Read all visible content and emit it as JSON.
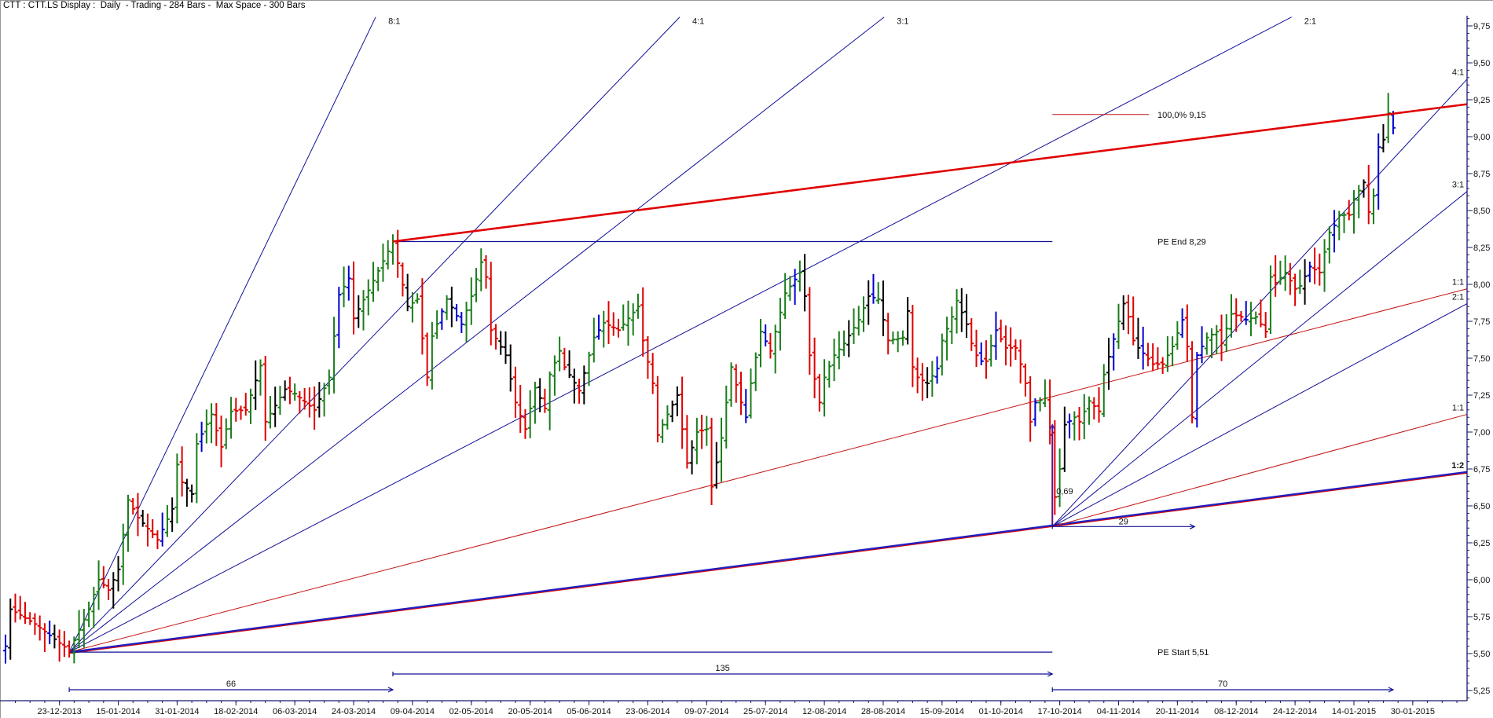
{
  "header": {
    "title": "CTT : CTT.LS Display :  Daily  - Trading - 284 Bars -  Max Space - 300 Bars"
  },
  "colors": {
    "up": "#1a7d1a",
    "down": "#e00000",
    "neutral": "#000000",
    "inside": "#0000d0",
    "fan": "#101098",
    "fan_red": "#c41414",
    "axis": "#1a1a6e"
  },
  "chart_data": {
    "type": "ohlc-bar",
    "title": "CTT : CTT.LS Display :  Daily  - Trading - 284 Bars -  Max Space - 300 Bars",
    "bar_count": 284,
    "xlim_bars": [
      -0.3,
      298.5
    ],
    "ylim": [
      5.18,
      9.85
    ],
    "y_ticks": [
      "5,25",
      "5,50",
      "5,75",
      "6,00",
      "6,25",
      "6,50",
      "6,75",
      "7,00",
      "7,25",
      "7,50",
      "7,75",
      "8,00",
      "8,25",
      "8,50",
      "8,75",
      "9,00",
      "9,25",
      "9,50",
      "9,75"
    ],
    "x_tick_first_bar": 11,
    "x_tick_step_bars": 12,
    "x_ticks": [
      "23-12-2013",
      "15-01-2014",
      "31-01-2014",
      "18-02-2014",
      "06-03-2014",
      "24-03-2014",
      "09-04-2014",
      "02-05-2014",
      "20-05-2014",
      "05-06-2014",
      "23-06-2014",
      "09-07-2014",
      "25-07-2014",
      "12-08-2014",
      "28-08-2014",
      "15-09-2014",
      "01-10-2014",
      "17-10-2014",
      "04-11-2014",
      "20-11-2014",
      "08-12-2014",
      "24-12-2014",
      "14-01-2015",
      "30-01-2015"
    ],
    "close_path": [
      [
        0,
        5.55
      ],
      [
        1,
        5.8
      ],
      [
        6,
        5.7
      ],
      [
        13,
        5.52
      ],
      [
        17,
        5.8
      ],
      [
        19,
        6.0
      ],
      [
        21,
        5.93
      ],
      [
        23,
        6.07
      ],
      [
        25,
        6.54
      ],
      [
        27,
        6.42
      ],
      [
        31,
        6.27
      ],
      [
        34,
        6.48
      ],
      [
        35,
        6.78
      ],
      [
        36,
        6.66
      ],
      [
        38,
        6.58
      ],
      [
        39,
        6.92
      ],
      [
        42,
        7.12
      ],
      [
        44,
        6.9
      ],
      [
        46,
        7.14
      ],
      [
        49,
        7.15
      ],
      [
        52,
        7.45
      ],
      [
        53,
        7.07
      ],
      [
        57,
        7.29
      ],
      [
        59,
        7.26
      ],
      [
        63,
        7.15
      ],
      [
        66,
        7.37
      ],
      [
        68,
        7.93
      ],
      [
        70,
        8.04
      ],
      [
        71,
        7.77
      ],
      [
        74,
        7.96
      ],
      [
        79,
        8.29
      ],
      [
        82,
        7.85
      ],
      [
        84,
        7.9
      ],
      [
        86,
        7.37
      ],
      [
        87,
        7.65
      ],
      [
        90,
        7.9
      ],
      [
        93,
        7.73
      ],
      [
        95,
        7.92
      ],
      [
        97,
        8.15
      ],
      [
        98,
        8.05
      ],
      [
        99,
        7.69
      ],
      [
        102,
        7.52
      ],
      [
        104,
        7.2
      ],
      [
        106,
        7.02
      ],
      [
        108,
        7.3
      ],
      [
        110,
        7.16
      ],
      [
        111,
        7.39
      ],
      [
        113,
        7.55
      ],
      [
        114,
        7.44
      ],
      [
        117,
        7.28
      ],
      [
        120,
        7.64
      ],
      [
        122,
        7.74
      ],
      [
        125,
        7.69
      ],
      [
        129,
        7.85
      ],
      [
        130,
        7.62
      ],
      [
        132,
        7.33
      ],
      [
        133,
        6.98
      ],
      [
        135,
        7.12
      ],
      [
        137,
        7.25
      ],
      [
        139,
        6.79
      ],
      [
        141,
        7.0
      ],
      [
        143,
        7.02
      ],
      [
        144,
        6.63
      ],
      [
        146,
        6.96
      ],
      [
        148,
        7.44
      ],
      [
        150,
        7.2
      ],
      [
        151,
        7.1
      ],
      [
        152,
        7.33
      ],
      [
        154,
        7.68
      ],
      [
        156,
        7.55
      ],
      [
        159,
        7.94
      ],
      [
        162,
        8.08
      ],
      [
        163,
        7.92
      ],
      [
        164,
        7.52
      ],
      [
        166,
        7.2
      ],
      [
        167,
        7.37
      ],
      [
        169,
        7.52
      ],
      [
        171,
        7.6
      ],
      [
        174,
        7.76
      ],
      [
        176,
        7.92
      ],
      [
        178,
        7.9
      ],
      [
        180,
        7.62
      ],
      [
        183,
        7.64
      ],
      [
        184,
        7.82
      ],
      [
        185,
        7.44
      ],
      [
        186,
        7.37
      ],
      [
        188,
        7.33
      ],
      [
        190,
        7.43
      ],
      [
        191,
        7.62
      ],
      [
        193,
        7.78
      ],
      [
        194,
        7.89
      ],
      [
        196,
        7.73
      ],
      [
        197,
        7.6
      ],
      [
        198,
        7.52
      ],
      [
        199,
        7.48
      ],
      [
        200,
        7.48
      ],
      [
        202,
        7.69
      ],
      [
        204,
        7.57
      ],
      [
        206,
        7.57
      ],
      [
        207,
        7.46
      ],
      [
        208,
        7.33
      ],
      [
        209,
        7.07
      ],
      [
        210,
        7.2
      ],
      [
        212,
        7.23
      ],
      [
        213,
        6.98
      ],
      [
        214,
        6.56
      ],
      [
        215,
        6.75
      ],
      [
        216,
        7.05
      ],
      [
        218,
        7.1
      ],
      [
        219,
        7.07
      ],
      [
        221,
        7.21
      ],
      [
        223,
        7.14
      ],
      [
        224,
        7.39
      ],
      [
        228,
        7.87
      ],
      [
        229,
        7.78
      ],
      [
        230,
        7.62
      ],
      [
        231,
        7.57
      ],
      [
        234,
        7.46
      ],
      [
        236,
        7.46
      ],
      [
        238,
        7.58
      ],
      [
        240,
        7.76
      ],
      [
        241,
        7.58
      ],
      [
        242,
        7.1
      ],
      [
        243,
        7.52
      ],
      [
        245,
        7.64
      ],
      [
        247,
        7.68
      ],
      [
        248,
        7.6
      ],
      [
        250,
        7.8
      ],
      [
        252,
        7.78
      ],
      [
        253,
        7.76
      ],
      [
        255,
        7.78
      ],
      [
        257,
        7.68
      ],
      [
        258,
        8.05
      ],
      [
        259,
        8.01
      ],
      [
        261,
        8.08
      ],
      [
        263,
        7.97
      ],
      [
        264,
        7.99
      ],
      [
        266,
        8.12
      ],
      [
        268,
        8.08
      ],
      [
        269,
        8.22
      ],
      [
        270,
        8.35
      ],
      [
        271,
        8.4
      ],
      [
        272,
        8.47
      ],
      [
        274,
        8.47
      ],
      [
        275,
        8.58
      ],
      [
        277,
        8.69
      ],
      [
        278,
        8.49
      ],
      [
        279,
        8.6
      ],
      [
        280,
        8.93
      ],
      [
        281,
        8.98
      ],
      [
        282,
        9.16
      ],
      [
        283,
        9.06
      ]
    ],
    "gann_fans": [
      {
        "name": "fan-1",
        "origin": [
          13,
          5.51
        ],
        "lines": [
          {
            "ratio": "8:1",
            "end": [
              75.5,
              9.81
            ],
            "style": "blue",
            "label_pos": "top"
          },
          {
            "ratio": "4:1",
            "end": [
              137.5,
              9.81
            ],
            "style": "blue",
            "label_pos": "top"
          },
          {
            "ratio": "3:1",
            "end": [
              179.2,
              9.81
            ],
            "style": "blue",
            "label_pos": "top"
          },
          {
            "ratio": "2:1",
            "end": [
              262.3,
              9.81
            ],
            "style": "blue",
            "label_pos": "top"
          },
          {
            "ratio": "1:1",
            "end": [
              298.1,
              7.97
            ],
            "style": "red",
            "label_pos": "right"
          },
          {
            "ratio": "1:2",
            "end": [
              298.1,
              6.73
            ],
            "style": "thick",
            "label_pos": "right"
          }
        ]
      },
      {
        "name": "fan-2",
        "origin": [
          213.5,
          6.36
        ],
        "lines": [
          {
            "ratio": "4:1",
            "end": [
              298.1,
              9.39
            ],
            "style": "blue",
            "label_pos": "right"
          },
          {
            "ratio": "3:1",
            "end": [
              298.1,
              8.63
            ],
            "style": "blue",
            "label_pos": "right"
          },
          {
            "ratio": "2:1",
            "end": [
              298.1,
              7.87
            ],
            "style": "blue",
            "label_pos": "right"
          },
          {
            "ratio": "1:1",
            "end": [
              298.1,
              7.12
            ],
            "style": "red",
            "label_pos": "right"
          }
        ]
      }
    ],
    "annotations": {
      "pe_start": {
        "label": "PE Start 5,51",
        "price": 5.51,
        "from_bar": 13,
        "to_bar": 213.5
      },
      "pe_end": {
        "label": "PE End 8,29",
        "price": 8.29,
        "from_bar": 79,
        "to_bar": 213.5
      },
      "projection": {
        "from": [
          79,
          8.29
        ],
        "to": [
          298.1,
          9.22
        ]
      },
      "target": {
        "label": "100,0% 9,15",
        "price": 9.15,
        "from_bar": 213.5,
        "to_bar": 233.2
      },
      "price_range": {
        "label": "0,69",
        "bar": 213.5,
        "from_price": 6.36,
        "to_price": 7.05
      },
      "short_span": {
        "label": "29",
        "price": 6.36,
        "from_bar": 213.5,
        "to_bar": 242.5
      },
      "spans": [
        {
          "label": "66",
          "from_bar": 13,
          "to_bar": 79,
          "row": "lower"
        },
        {
          "label": "135",
          "from_bar": 79,
          "to_bar": 213.5,
          "row": "upper"
        },
        {
          "label": "70",
          "from_bar": 213.5,
          "to_bar": 283,
          "row": "lower"
        }
      ]
    }
  }
}
